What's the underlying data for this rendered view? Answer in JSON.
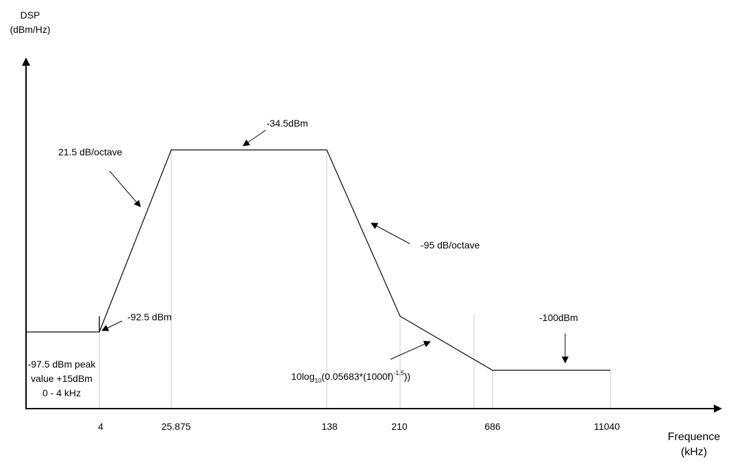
{
  "y_axis_title": [
    "DSP",
    "(dBm/Hz)"
  ],
  "x_axis_title": [
    "Frequence",
    "(kHz)"
  ],
  "x_ticks": [
    "4",
    "25.875",
    "138",
    "210",
    "686",
    "11040"
  ],
  "annotations": {
    "slope_up": "21.5 dB/octave",
    "plateau": "-34.5dBm",
    "slope_down": "-95 dB/octave",
    "knee_low": "-92.5 dBm",
    "floor": "-100dBm",
    "baseband": [
      "-97.5 dBm peak",
      "value +15dBm",
      "0 - 4 kHz"
    ],
    "formula": {
      "prefix": "10log",
      "subscript": "10",
      "body": "(0.05683*(1000f)",
      "exponent": "-1.5",
      "suffix": "))"
    }
  }
}
